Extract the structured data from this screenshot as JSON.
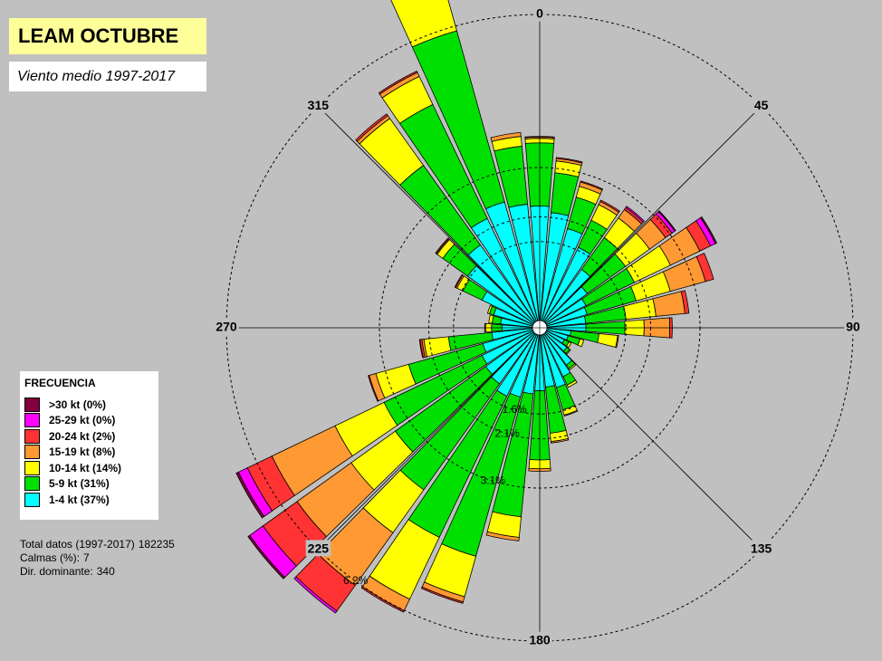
{
  "title": "LEAM OCTUBRE",
  "subtitle": "Viento medio 1997-2017",
  "legend": {
    "title": "FRECUENCIA",
    "items": [
      {
        "label": ">30 kt (0%)",
        "color": "#800040"
      },
      {
        "label": "25-29 kt (0%)",
        "color": "#ff00ff"
      },
      {
        "label": "20-24 kt (2%)",
        "color": "#ff3333"
      },
      {
        "label": "15-19 kt (8%)",
        "color": "#ff9933"
      },
      {
        "label": "10-14 kt (14%)",
        "color": "#ffff00"
      },
      {
        "label": "5-9 kt (31%)",
        "color": "#00e000"
      },
      {
        "label": "1-4 kt (37%)",
        "color": "#00ffff"
      }
    ]
  },
  "stats": {
    "total_label": "Total datos (1997-2017)",
    "total_value": "182235",
    "calms_label": "Calmas (%):",
    "calms_value": "7",
    "dominant_label": "Dir. dominante:",
    "dominant_value": "340"
  },
  "chart_data": {
    "type": "windrose",
    "direction_labels": [
      "0",
      "45",
      "90",
      "135",
      "180",
      "225",
      "270",
      "315"
    ],
    "ring_labels": [
      "1.6%",
      "2.1%",
      "3.1%",
      "6.2%"
    ],
    "ring_values": [
      1.6,
      2.1,
      3.1,
      6.2
    ],
    "units": "%",
    "bins": [
      "1-4 kt",
      "5-9 kt",
      "10-14 kt",
      "15-19 kt",
      "20-24 kt",
      "25-29 kt",
      ">30 kt"
    ],
    "sectors": [
      {
        "dir": 0,
        "values": [
          2.32,
          1.28,
          0.09,
          0.03,
          0.01,
          0,
          0
        ]
      },
      {
        "dir": 10,
        "values": [
          2.2,
          0.81,
          0.24,
          0.05,
          0.02,
          0,
          0
        ]
      },
      {
        "dir": 20,
        "values": [
          1.94,
          0.66,
          0.23,
          0.09,
          0.02,
          0,
          0
        ]
      },
      {
        "dir": 30,
        "values": [
          1.66,
          0.61,
          0.35,
          0.07,
          0.03,
          0,
          0
        ]
      },
      {
        "dir": 40,
        "values": [
          1.31,
          0.79,
          0.49,
          0.21,
          0.05,
          0.03,
          0
        ]
      },
      {
        "dir": 50,
        "values": [
          1.04,
          0.95,
          0.6,
          0.4,
          0.16,
          0.07,
          0.02
        ]
      },
      {
        "dir": 60,
        "values": [
          0.89,
          1.09,
          0.81,
          0.66,
          0.24,
          0.11,
          0.03
        ]
      },
      {
        "dir": 70,
        "values": [
          0.85,
          1.03,
          0.72,
          0.74,
          0.17,
          0,
          0
        ]
      },
      {
        "dir": 80,
        "values": [
          0.79,
          0.82,
          0.61,
          0.59,
          0.08,
          0,
          0
        ]
      },
      {
        "dir": 90,
        "values": [
          0.79,
          0.79,
          0.39,
          0.52,
          0.05,
          0,
          0
        ]
      },
      {
        "dir": 100,
        "values": [
          0.49,
          0.57,
          0.38,
          0.02,
          0,
          0,
          0
        ]
      },
      {
        "dir": 110,
        "values": [
          0.45,
          0.25,
          0.08,
          0,
          0,
          0,
          0
        ]
      },
      {
        "dir": 120,
        "values": [
          0.41,
          0.1,
          0.05,
          0,
          0,
          0,
          0
        ]
      },
      {
        "dir": 130,
        "values": [
          0.53,
          0.07,
          0.02,
          0,
          0,
          0,
          0
        ]
      },
      {
        "dir": 140,
        "values": [
          0.78,
          0.09,
          0.03,
          0,
          0,
          0,
          0
        ]
      },
      {
        "dir": 150,
        "values": [
          0.95,
          0.19,
          0.05,
          0,
          0,
          0,
          0
        ]
      },
      {
        "dir": 160,
        "values": [
          1.11,
          0.47,
          0.11,
          0.02,
          0,
          0,
          0
        ]
      },
      {
        "dir": 170,
        "values": [
          1.06,
          0.94,
          0.17,
          0.03,
          0,
          0,
          0
        ]
      },
      {
        "dir": 180,
        "values": [
          1.13,
          1.4,
          0.18,
          0.05,
          0,
          0,
          0
        ]
      },
      {
        "dir": 190,
        "values": [
          1.2,
          2.5,
          0.42,
          0.07,
          0,
          0,
          0
        ]
      },
      {
        "dir": 200,
        "values": [
          1.31,
          3.35,
          0.85,
          0.11,
          0.03,
          0,
          0
        ]
      },
      {
        "dir": 210,
        "values": [
          1.39,
          3.17,
          1.39,
          0.26,
          0.03,
          0,
          0
        ]
      },
      {
        "dir": 220,
        "values": [
          1.25,
          2.64,
          1.07,
          1.31,
          0.64,
          0.05,
          0
        ]
      },
      {
        "dir": 230,
        "values": [
          1.2,
          2.25,
          1.1,
          1.35,
          0.85,
          0.33,
          0.04
        ]
      },
      {
        "dir": 240,
        "values": [
          1.15,
          2.2,
          1.1,
          1.42,
          0.55,
          0.2,
          0.05
        ]
      },
      {
        "dir": 250,
        "values": [
          1.05,
          1.56,
          0.69,
          0.14,
          0.02,
          0,
          0
        ]
      },
      {
        "dir": 260,
        "values": [
          0.83,
          0.88,
          0.5,
          0.04,
          0.04,
          0.01,
          0
        ]
      },
      {
        "dir": 270,
        "values": [
          0.62,
          0.21,
          0.12,
          0.02,
          0,
          0,
          0
        ]
      },
      {
        "dir": 280,
        "values": [
          0.65,
          0.17,
          0.07,
          0,
          0,
          0,
          0
        ]
      },
      {
        "dir": 290,
        "values": [
          0.82,
          0.09,
          0.04,
          0,
          0,
          0,
          0
        ]
      },
      {
        "dir": 300,
        "values": [
          1.15,
          0.43,
          0.13,
          0.03,
          0.02,
          0,
          0
        ]
      },
      {
        "dir": 310,
        "values": [
          1.65,
          0.62,
          0.14,
          0.02,
          0.02,
          0,
          0
        ]
      },
      {
        "dir": 320,
        "values": [
          1.92,
          1.98,
          1.17,
          0.07,
          0.04,
          0,
          0
        ]
      },
      {
        "dir": 330,
        "values": [
          2.31,
          2.56,
          0.63,
          0.09,
          0.03,
          0,
          0
        ]
      },
      {
        "dir": 340,
        "values": [
          2.5,
          3.6,
          2.08,
          0.15,
          0.08,
          0.01,
          0
        ]
      },
      {
        "dir": 350,
        "values": [
          2.37,
          1.18,
          0.2,
          0.08,
          0,
          0,
          0
        ]
      }
    ]
  }
}
